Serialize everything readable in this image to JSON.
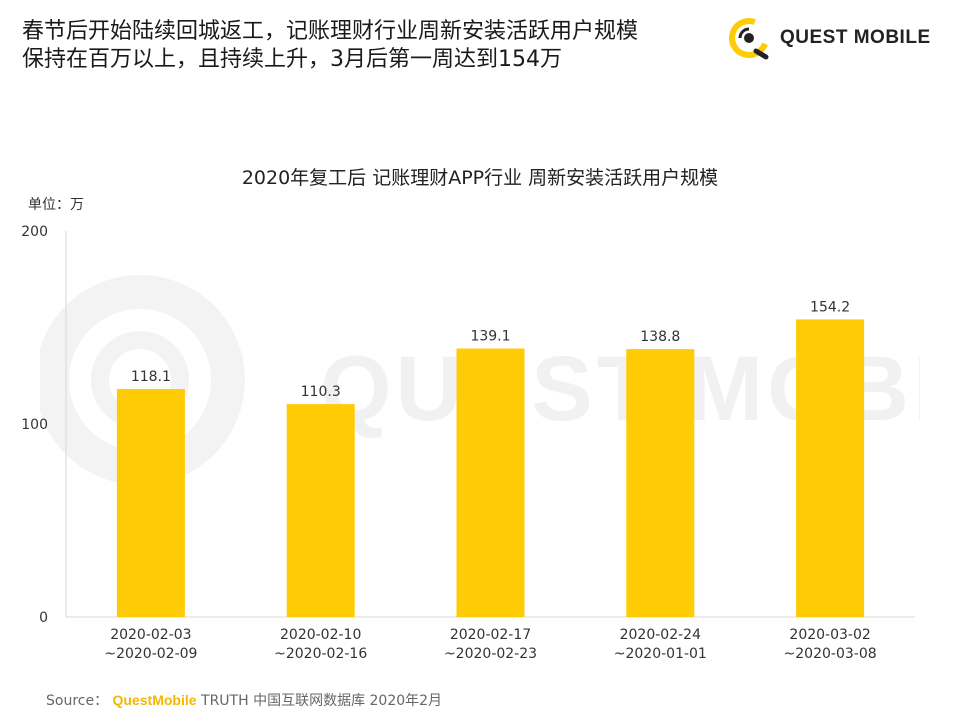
{
  "headline": {
    "line1": "春节后开始陆续回城返工，记账理财行业周新安装活跃用户规模",
    "line2": "保持在百万以上，且持续上升，3月后第一周达到154万"
  },
  "logo": {
    "text": "QUEST MOBILE",
    "icon": "quest-mobile-logo-icon",
    "accent": "#FFCB05"
  },
  "watermark": {
    "text": "QUEST MOBILE"
  },
  "unit_label": "单位：万",
  "source": {
    "prefix": "Source：",
    "brand": "QuestMobile",
    "rest": "TRUTH 中国互联网数据库 2020年2月"
  },
  "chart_data": {
    "type": "bar",
    "title": "2020年复工后 记账理财APP行业 周新安装活跃用户规模",
    "categories": [
      [
        "2020-02-03",
        "~2020-02-09"
      ],
      [
        "2020-02-10",
        "~2020-02-16"
      ],
      [
        "2020-02-17",
        "~2020-02-23"
      ],
      [
        "2020-02-24",
        "~2020-01-01"
      ],
      [
        "2020-03-02",
        "~2020-03-08"
      ]
    ],
    "values": [
      118.1,
      110.3,
      139.1,
      138.8,
      154.2
    ],
    "value_labels": [
      "118.1",
      "110.3",
      "139.1",
      "138.8",
      "154.2"
    ],
    "ylim": [
      0,
      200
    ],
    "yticks": [
      "0",
      "100",
      "200"
    ],
    "bar_color": "#FFCB05",
    "grid": false
  }
}
